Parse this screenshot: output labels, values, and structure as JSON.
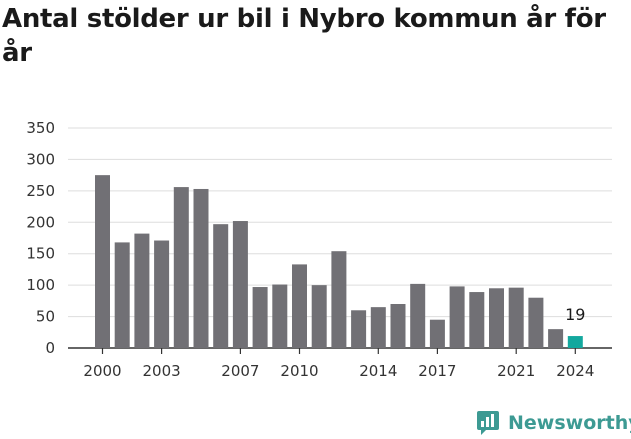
{
  "title": "Antal stölder ur bil i Nybro kommun år för år",
  "brand": {
    "name": "Newsworthy",
    "icon": "newsworthy-logo-icon",
    "color": "#3d9a93"
  },
  "chart_data": {
    "type": "bar",
    "title": "Antal stölder ur bil i Nybro kommun år för år",
    "xlabel": "",
    "ylabel": "",
    "x": [
      2000,
      2001,
      2002,
      2003,
      2004,
      2005,
      2006,
      2007,
      2008,
      2009,
      2010,
      2011,
      2012,
      2013,
      2014,
      2015,
      2016,
      2017,
      2018,
      2019,
      2020,
      2021,
      2022,
      2023,
      2024
    ],
    "values": [
      275,
      168,
      182,
      171,
      256,
      253,
      197,
      202,
      97,
      101,
      133,
      100,
      154,
      60,
      65,
      70,
      102,
      45,
      98,
      89,
      95,
      96,
      80,
      30,
      19
    ],
    "x_tick_labels": [
      "2000",
      "2003",
      "2007",
      "2010",
      "2014",
      "2017",
      "2021",
      "2024"
    ],
    "y_ticks": [
      "0",
      "50",
      "100",
      "150",
      "200",
      "250",
      "300",
      "350"
    ],
    "ylim": [
      0,
      350
    ],
    "grid": "horizontal",
    "colors": {
      "bar": "#717075",
      "highlight": "#13a89e"
    },
    "highlight_index": 24,
    "data_labels": [
      {
        "index": 24,
        "text": "19"
      }
    ]
  }
}
